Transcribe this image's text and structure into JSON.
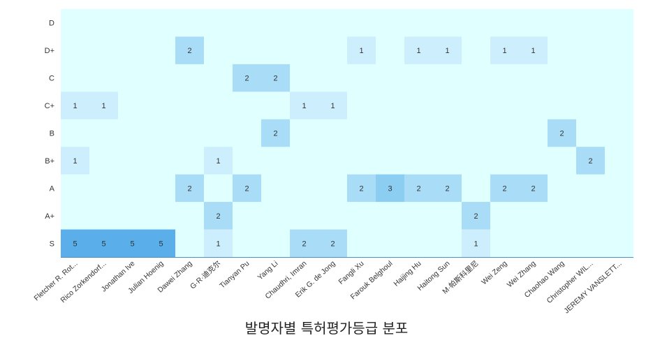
{
  "chart_data": {
    "type": "heatmap",
    "title": "발명자별 특허평가등급 분포",
    "xlabel": "",
    "ylabel": "",
    "x_categories": [
      "Fletcher R. Rot...",
      "Rico Zorkendorf...",
      "Jonathan Ive",
      "Julian Hoenig",
      "Dawei Zhang",
      "G·R·迪克尔",
      "Tianyan Pu",
      "Yang Li",
      "Chaudhri, Imran",
      "Erik G. de Jong",
      "Fangli Xu",
      "Farouk Belghoul",
      "Haijing Hu",
      "Haitong Sun",
      "M·帕斯科里尼",
      "Wei Zeng",
      "Wei Zhang",
      "Chaohao Wang",
      "Christopher WIL...",
      "JEREMY VANSLETT..."
    ],
    "y_categories": [
      "D",
      "D+",
      "C",
      "C+",
      "B",
      "B+",
      "A",
      "A+",
      "S"
    ],
    "values": [
      [
        0,
        0,
        0,
        0,
        0,
        0,
        0,
        0,
        0,
        0,
        0,
        0,
        0,
        0,
        0,
        0,
        0,
        0,
        0,
        0
      ],
      [
        0,
        0,
        0,
        0,
        2,
        0,
        0,
        0,
        0,
        0,
        1,
        0,
        1,
        1,
        0,
        1,
        1,
        0,
        0,
        0
      ],
      [
        0,
        0,
        0,
        0,
        0,
        0,
        2,
        2,
        0,
        0,
        0,
        0,
        0,
        0,
        0,
        0,
        0,
        0,
        0,
        0
      ],
      [
        1,
        1,
        0,
        0,
        0,
        0,
        0,
        0,
        1,
        1,
        0,
        0,
        0,
        0,
        0,
        0,
        0,
        0,
        0,
        0
      ],
      [
        0,
        0,
        0,
        0,
        0,
        0,
        0,
        2,
        0,
        0,
        0,
        0,
        0,
        0,
        0,
        0,
        0,
        2,
        0,
        0
      ],
      [
        1,
        0,
        0,
        0,
        0,
        1,
        0,
        0,
        0,
        0,
        0,
        0,
        0,
        0,
        0,
        0,
        0,
        0,
        2,
        0
      ],
      [
        0,
        0,
        0,
        0,
        2,
        0,
        2,
        0,
        0,
        0,
        2,
        3,
        2,
        2,
        0,
        2,
        2,
        0,
        0,
        0
      ],
      [
        0,
        0,
        0,
        0,
        0,
        2,
        0,
        0,
        0,
        0,
        0,
        0,
        0,
        0,
        2,
        0,
        0,
        0,
        0,
        0
      ],
      [
        5,
        5,
        5,
        5,
        0,
        1,
        0,
        0,
        2,
        2,
        0,
        0,
        0,
        0,
        1,
        0,
        0,
        0,
        0,
        0
      ]
    ],
    "value_range": [
      0,
      5
    ],
    "colors": {
      "background": "#e0ffff",
      "scale": {
        "1": "#cdeffd",
        "2": "#a9dcf7",
        "3": "#8ccdf2",
        "5": "#5aaeea"
      },
      "axis_line": "#4a90c8"
    },
    "grid": false,
    "legend": "none"
  }
}
